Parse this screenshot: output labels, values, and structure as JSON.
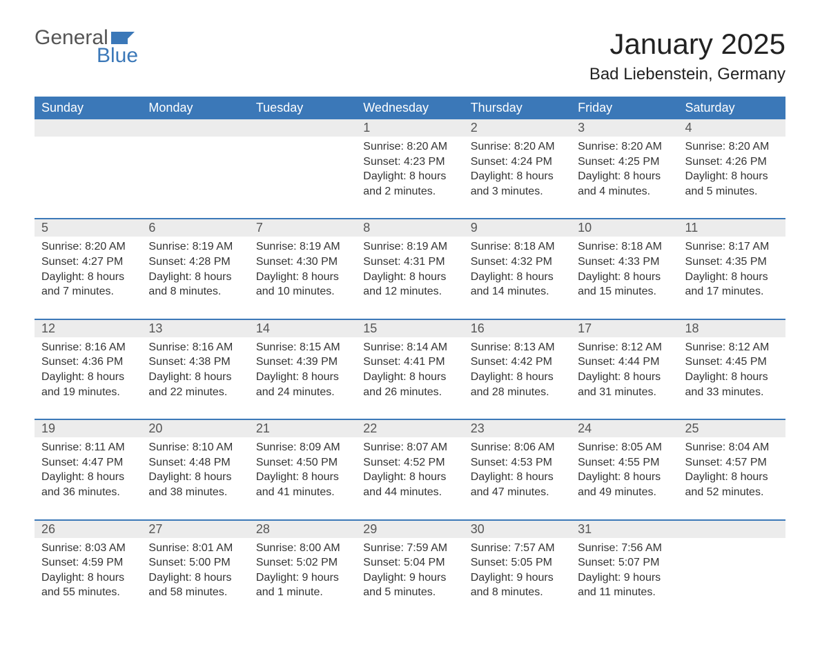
{
  "logo": {
    "word1": "General",
    "word2": "Blue",
    "flag_color": "#3b78b8",
    "text_gray": "#555555"
  },
  "title": "January 2025",
  "subtitle": "Bad Liebenstein, Germany",
  "colors": {
    "header_bg": "#3b78b8",
    "header_text": "#ffffff",
    "daynum_bg": "#ececec",
    "daynum_text": "#555555",
    "border_top": "#3b78b8",
    "body_text": "#333333",
    "background": "#ffffff"
  },
  "typography": {
    "title_fontsize": 42,
    "subtitle_fontsize": 24,
    "header_fontsize": 18,
    "daynum_fontsize": 18,
    "cell_fontsize": 16
  },
  "columns": [
    "Sunday",
    "Monday",
    "Tuesday",
    "Wednesday",
    "Thursday",
    "Friday",
    "Saturday"
  ],
  "weeks": [
    [
      null,
      null,
      null,
      {
        "n": "1",
        "sr": "Sunrise: 8:20 AM",
        "ss": "Sunset: 4:23 PM",
        "d1": "Daylight: 8 hours",
        "d2": "and 2 minutes."
      },
      {
        "n": "2",
        "sr": "Sunrise: 8:20 AM",
        "ss": "Sunset: 4:24 PM",
        "d1": "Daylight: 8 hours",
        "d2": "and 3 minutes."
      },
      {
        "n": "3",
        "sr": "Sunrise: 8:20 AM",
        "ss": "Sunset: 4:25 PM",
        "d1": "Daylight: 8 hours",
        "d2": "and 4 minutes."
      },
      {
        "n": "4",
        "sr": "Sunrise: 8:20 AM",
        "ss": "Sunset: 4:26 PM",
        "d1": "Daylight: 8 hours",
        "d2": "and 5 minutes."
      }
    ],
    [
      {
        "n": "5",
        "sr": "Sunrise: 8:20 AM",
        "ss": "Sunset: 4:27 PM",
        "d1": "Daylight: 8 hours",
        "d2": "and 7 minutes."
      },
      {
        "n": "6",
        "sr": "Sunrise: 8:19 AM",
        "ss": "Sunset: 4:28 PM",
        "d1": "Daylight: 8 hours",
        "d2": "and 8 minutes."
      },
      {
        "n": "7",
        "sr": "Sunrise: 8:19 AM",
        "ss": "Sunset: 4:30 PM",
        "d1": "Daylight: 8 hours",
        "d2": "and 10 minutes."
      },
      {
        "n": "8",
        "sr": "Sunrise: 8:19 AM",
        "ss": "Sunset: 4:31 PM",
        "d1": "Daylight: 8 hours",
        "d2": "and 12 minutes."
      },
      {
        "n": "9",
        "sr": "Sunrise: 8:18 AM",
        "ss": "Sunset: 4:32 PM",
        "d1": "Daylight: 8 hours",
        "d2": "and 14 minutes."
      },
      {
        "n": "10",
        "sr": "Sunrise: 8:18 AM",
        "ss": "Sunset: 4:33 PM",
        "d1": "Daylight: 8 hours",
        "d2": "and 15 minutes."
      },
      {
        "n": "11",
        "sr": "Sunrise: 8:17 AM",
        "ss": "Sunset: 4:35 PM",
        "d1": "Daylight: 8 hours",
        "d2": "and 17 minutes."
      }
    ],
    [
      {
        "n": "12",
        "sr": "Sunrise: 8:16 AM",
        "ss": "Sunset: 4:36 PM",
        "d1": "Daylight: 8 hours",
        "d2": "and 19 minutes."
      },
      {
        "n": "13",
        "sr": "Sunrise: 8:16 AM",
        "ss": "Sunset: 4:38 PM",
        "d1": "Daylight: 8 hours",
        "d2": "and 22 minutes."
      },
      {
        "n": "14",
        "sr": "Sunrise: 8:15 AM",
        "ss": "Sunset: 4:39 PM",
        "d1": "Daylight: 8 hours",
        "d2": "and 24 minutes."
      },
      {
        "n": "15",
        "sr": "Sunrise: 8:14 AM",
        "ss": "Sunset: 4:41 PM",
        "d1": "Daylight: 8 hours",
        "d2": "and 26 minutes."
      },
      {
        "n": "16",
        "sr": "Sunrise: 8:13 AM",
        "ss": "Sunset: 4:42 PM",
        "d1": "Daylight: 8 hours",
        "d2": "and 28 minutes."
      },
      {
        "n": "17",
        "sr": "Sunrise: 8:12 AM",
        "ss": "Sunset: 4:44 PM",
        "d1": "Daylight: 8 hours",
        "d2": "and 31 minutes."
      },
      {
        "n": "18",
        "sr": "Sunrise: 8:12 AM",
        "ss": "Sunset: 4:45 PM",
        "d1": "Daylight: 8 hours",
        "d2": "and 33 minutes."
      }
    ],
    [
      {
        "n": "19",
        "sr": "Sunrise: 8:11 AM",
        "ss": "Sunset: 4:47 PM",
        "d1": "Daylight: 8 hours",
        "d2": "and 36 minutes."
      },
      {
        "n": "20",
        "sr": "Sunrise: 8:10 AM",
        "ss": "Sunset: 4:48 PM",
        "d1": "Daylight: 8 hours",
        "d2": "and 38 minutes."
      },
      {
        "n": "21",
        "sr": "Sunrise: 8:09 AM",
        "ss": "Sunset: 4:50 PM",
        "d1": "Daylight: 8 hours",
        "d2": "and 41 minutes."
      },
      {
        "n": "22",
        "sr": "Sunrise: 8:07 AM",
        "ss": "Sunset: 4:52 PM",
        "d1": "Daylight: 8 hours",
        "d2": "and 44 minutes."
      },
      {
        "n": "23",
        "sr": "Sunrise: 8:06 AM",
        "ss": "Sunset: 4:53 PM",
        "d1": "Daylight: 8 hours",
        "d2": "and 47 minutes."
      },
      {
        "n": "24",
        "sr": "Sunrise: 8:05 AM",
        "ss": "Sunset: 4:55 PM",
        "d1": "Daylight: 8 hours",
        "d2": "and 49 minutes."
      },
      {
        "n": "25",
        "sr": "Sunrise: 8:04 AM",
        "ss": "Sunset: 4:57 PM",
        "d1": "Daylight: 8 hours",
        "d2": "and 52 minutes."
      }
    ],
    [
      {
        "n": "26",
        "sr": "Sunrise: 8:03 AM",
        "ss": "Sunset: 4:59 PM",
        "d1": "Daylight: 8 hours",
        "d2": "and 55 minutes."
      },
      {
        "n": "27",
        "sr": "Sunrise: 8:01 AM",
        "ss": "Sunset: 5:00 PM",
        "d1": "Daylight: 8 hours",
        "d2": "and 58 minutes."
      },
      {
        "n": "28",
        "sr": "Sunrise: 8:00 AM",
        "ss": "Sunset: 5:02 PM",
        "d1": "Daylight: 9 hours",
        "d2": "and 1 minute."
      },
      {
        "n": "29",
        "sr": "Sunrise: 7:59 AM",
        "ss": "Sunset: 5:04 PM",
        "d1": "Daylight: 9 hours",
        "d2": "and 5 minutes."
      },
      {
        "n": "30",
        "sr": "Sunrise: 7:57 AM",
        "ss": "Sunset: 5:05 PM",
        "d1": "Daylight: 9 hours",
        "d2": "and 8 minutes."
      },
      {
        "n": "31",
        "sr": "Sunrise: 7:56 AM",
        "ss": "Sunset: 5:07 PM",
        "d1": "Daylight: 9 hours",
        "d2": "and 11 minutes."
      },
      null
    ]
  ]
}
